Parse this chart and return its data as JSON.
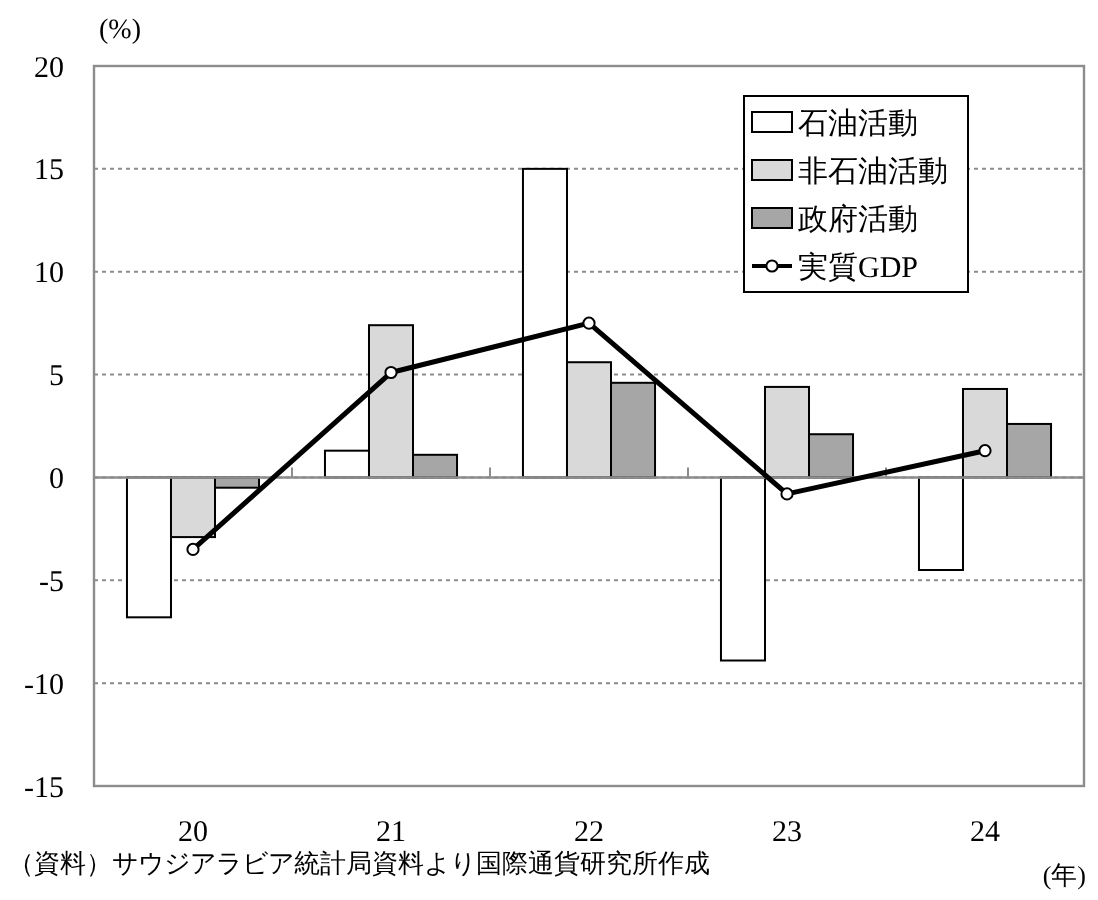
{
  "chart_data": {
    "type": "bar",
    "categories": [
      "20",
      "21",
      "22",
      "23",
      "24"
    ],
    "series": [
      {
        "name": "石油活動",
        "color": "#ffffff",
        "values": [
          -6.8,
          1.3,
          15.0,
          -8.9,
          -4.5
        ]
      },
      {
        "name": "非石油活動",
        "color": "#d9d9d9",
        "values": [
          -2.9,
          7.4,
          5.6,
          4.4,
          4.3
        ]
      },
      {
        "name": "政府活動",
        "color": "#a6a6a6",
        "values": [
          -0.5,
          1.1,
          4.6,
          2.1,
          2.6
        ]
      },
      {
        "name": "実質GDP",
        "color": "#000000",
        "type": "line",
        "values": [
          -3.5,
          5.1,
          7.5,
          -0.8,
          1.3
        ]
      }
    ],
    "ylim": [
      -15,
      20
    ],
    "yticks": [
      -15,
      -10,
      -5,
      0,
      5,
      10,
      15,
      20
    ],
    "ylabel": "(%)",
    "xlabel": "(年)",
    "annotations": [
      "（資料）サウジアラビア統計局資料より国際通貨研究所作成"
    ],
    "grid": "y",
    "legend": "top right",
    "marker": "circle",
    "line_style": "solid"
  }
}
